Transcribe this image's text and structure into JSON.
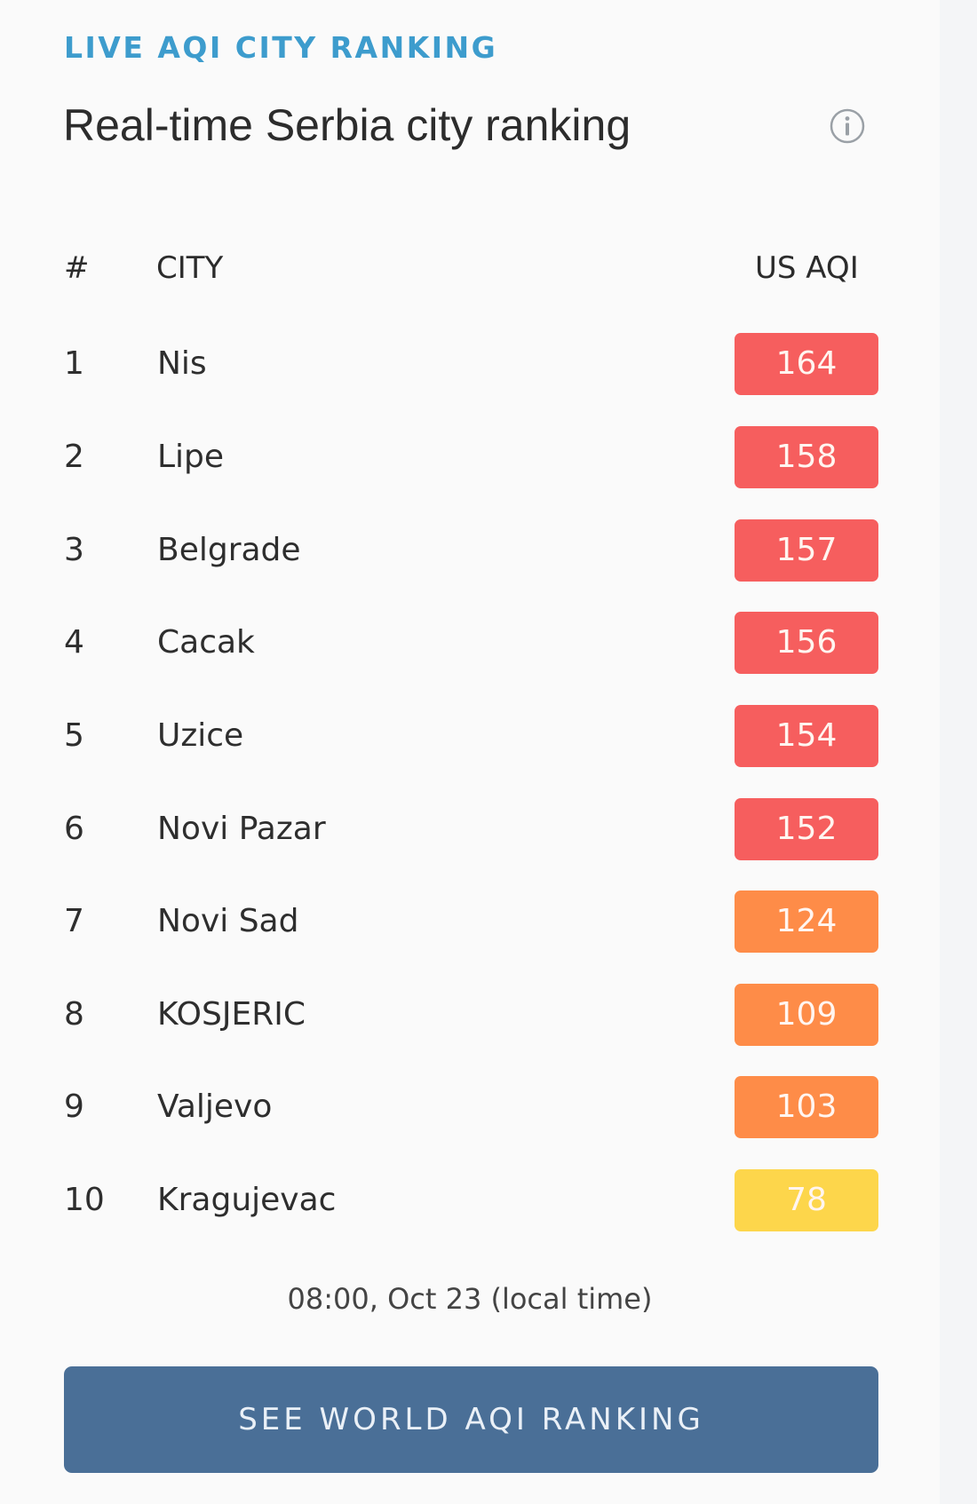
{
  "widget": {
    "eyebrow": "LIVE AQI CITY RANKING",
    "title": "Real-time Serbia city ranking",
    "info_icon": "info-circle-icon"
  },
  "table": {
    "headers": {
      "rank": "#",
      "city": "CITY",
      "aqi": "US AQI"
    },
    "rows": [
      {
        "rank": "1",
        "city": "Nis",
        "aqi": "164",
        "color": "#f65e5e"
      },
      {
        "rank": "2",
        "city": "Lipe",
        "aqi": "158",
        "color": "#f65e5e"
      },
      {
        "rank": "3",
        "city": "Belgrade",
        "aqi": "157",
        "color": "#f65e5e"
      },
      {
        "rank": "4",
        "city": "Cacak",
        "aqi": "156",
        "color": "#f65e5e"
      },
      {
        "rank": "5",
        "city": "Uzice",
        "aqi": "154",
        "color": "#f65e5e"
      },
      {
        "rank": "6",
        "city": "Novi Pazar",
        "aqi": "152",
        "color": "#f65e5e"
      },
      {
        "rank": "7",
        "city": "Novi Sad",
        "aqi": "124",
        "color": "#fe8c48"
      },
      {
        "rank": "8",
        "city": "KOSJERIC",
        "aqi": "109",
        "color": "#fe8c48"
      },
      {
        "rank": "9",
        "city": "Valjevo",
        "aqi": "103",
        "color": "#fe8c48"
      },
      {
        "rank": "10",
        "city": "Kragujevac",
        "aqi": "78",
        "color": "#fdd64b"
      }
    ]
  },
  "timestamp": "08:00, Oct 23 (local time)",
  "cta": {
    "label": "SEE WORLD AQI RANKING"
  },
  "colors": {
    "accent": "#3d9ccd",
    "unhealthy": "#f65e5e",
    "unhealthy_sensitive": "#fe8c48",
    "moderate": "#fdd64b",
    "button": "#4a6f97"
  }
}
